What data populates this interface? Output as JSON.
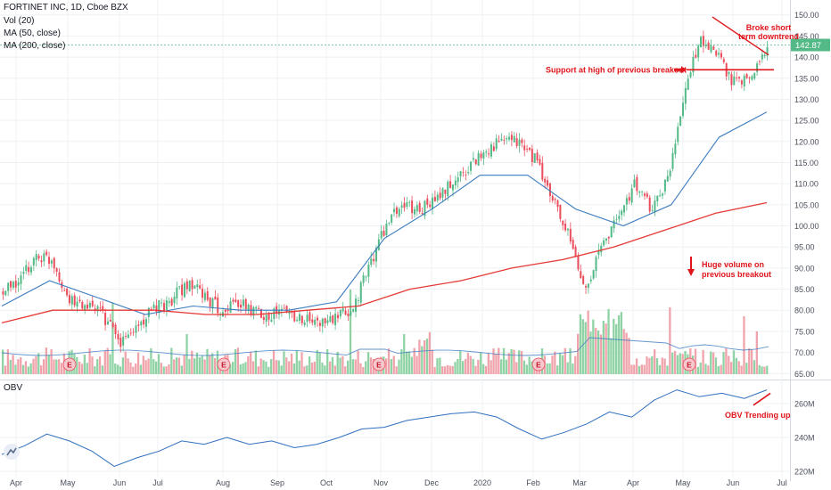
{
  "header": {
    "title": "FORTINET INC, 1D, Cboe BZX",
    "volume_label": "Vol (20)",
    "ma50_label": "MA (50, close)",
    "ma200_label": "MA (200, close)",
    "obv_label": "OBV"
  },
  "price_tag": "142.87",
  "colors": {
    "up": "#53b987",
    "down": "#eb4d5c",
    "ma50": "#3a7bbf",
    "ma200": "#e53935",
    "obv": "#2f6fbf",
    "annotation": "#e0141b",
    "grid": "#eef0f3",
    "axis_text": "#4a4f5c"
  },
  "chart_data": [
    {
      "type": "candlestick",
      "title": "FORTINET INC, 1D, Cboe BZX",
      "x_tick_labels": [
        "Apr",
        "May",
        "Jun",
        "Jul",
        "Aug",
        "Sep",
        "Oct",
        "Nov",
        "Dec",
        "2020",
        "Feb",
        "Mar",
        "Apr",
        "May",
        "Jun",
        "Jul"
      ],
      "y_tick_labels": [
        "65.00",
        "70.00",
        "75.00",
        "80.00",
        "85.00",
        "90.00",
        "95.00",
        "100.00",
        "105.00",
        "110.00",
        "115.00",
        "120.00",
        "125.00",
        "130.00",
        "135.00",
        "140.00",
        "145.00",
        "150.00"
      ],
      "ylim": [
        64,
        151
      ],
      "grid": true,
      "last_price": 142.87,
      "close_path": [
        {
          "x": "Apr",
          "y": 84
        },
        {
          "x": "mid-Apr",
          "y": 87
        },
        {
          "x": "late-Apr",
          "y": 93
        },
        {
          "x": "May",
          "y": 92
        },
        {
          "x": "early-May",
          "y": 82
        },
        {
          "x": "mid-May",
          "y": 81
        },
        {
          "x": "late-May",
          "y": 79
        },
        {
          "x": "Jun",
          "y": 72
        },
        {
          "x": "mid-Jun",
          "y": 76
        },
        {
          "x": "late-Jun",
          "y": 80
        },
        {
          "x": "Jul",
          "y": 82
        },
        {
          "x": "mid-Jul",
          "y": 86
        },
        {
          "x": "late-Jul",
          "y": 84
        },
        {
          "x": "Aug",
          "y": 80
        },
        {
          "x": "mid-Aug",
          "y": 82
        },
        {
          "x": "late-Aug",
          "y": 80
        },
        {
          "x": "Sep",
          "y": 79
        },
        {
          "x": "mid-Sep",
          "y": 80
        },
        {
          "x": "late-Sep",
          "y": 78
        },
        {
          "x": "Oct",
          "y": 77
        },
        {
          "x": "mid-Oct",
          "y": 78
        },
        {
          "x": "late-Oct",
          "y": 80
        },
        {
          "x": "Nov",
          "y": 90
        },
        {
          "x": "mid-Nov",
          "y": 100
        },
        {
          "x": "late-Nov",
          "y": 105
        },
        {
          "x": "Dec",
          "y": 104
        },
        {
          "x": "mid-Dec",
          "y": 106
        },
        {
          "x": "late-Dec",
          "y": 110
        },
        {
          "x": "2020",
          "y": 114
        },
        {
          "x": "mid-Jan",
          "y": 118
        },
        {
          "x": "late-Jan",
          "y": 120
        },
        {
          "x": "Feb",
          "y": 120
        },
        {
          "x": "mid-Feb",
          "y": 116
        },
        {
          "x": "late-Feb",
          "y": 107
        },
        {
          "x": "Mar",
          "y": 98
        },
        {
          "x": "mid-Mar",
          "y": 85
        },
        {
          "x": "late-Mar",
          "y": 95
        },
        {
          "x": "Apr",
          "y": 102
        },
        {
          "x": "mid-Apr",
          "y": 110
        },
        {
          "x": "late-Apr",
          "y": 104
        },
        {
          "x": "late-Apr2",
          "y": 111
        },
        {
          "x": "May",
          "y": 132
        },
        {
          "x": "mid-May",
          "y": 144
        },
        {
          "x": "late-May",
          "y": 140
        },
        {
          "x": "Jun",
          "y": 134
        },
        {
          "x": "mid-Jun",
          "y": 135
        },
        {
          "x": "late-Jun",
          "y": 142.87
        }
      ],
      "series": [
        {
          "name": "MA (50, close)",
          "values": [
            {
              "x": "Apr",
              "y": 81
            },
            {
              "x": "May",
              "y": 87
            },
            {
              "x": "Jun",
              "y": 83
            },
            {
              "x": "Jul",
              "y": 79
            },
            {
              "x": "Aug",
              "y": 81
            },
            {
              "x": "Sep",
              "y": 80
            },
            {
              "x": "Oct",
              "y": 80
            },
            {
              "x": "Nov",
              "y": 82
            },
            {
              "x": "Dec",
              "y": 97
            },
            {
              "x": "2020",
              "y": 104
            },
            {
              "x": "Feb",
              "y": 112
            },
            {
              "x": "Mar",
              "y": 112
            },
            {
              "x": "Apr",
              "y": 104
            },
            {
              "x": "late-Apr",
              "y": 100
            },
            {
              "x": "May",
              "y": 105
            },
            {
              "x": "Jun",
              "y": 121
            },
            {
              "x": "late-Jun",
              "y": 127
            }
          ]
        },
        {
          "name": "MA (200, close)",
          "values": [
            {
              "x": "Apr",
              "y": 77
            },
            {
              "x": "May",
              "y": 80
            },
            {
              "x": "Jun",
              "y": 80
            },
            {
              "x": "Jul",
              "y": 80
            },
            {
              "x": "Aug",
              "y": 79
            },
            {
              "x": "Sep",
              "y": 79
            },
            {
              "x": "Oct",
              "y": 80
            },
            {
              "x": "Nov",
              "y": 81
            },
            {
              "x": "Dec",
              "y": 85
            },
            {
              "x": "2020",
              "y": 87
            },
            {
              "x": "Feb",
              "y": 90
            },
            {
              "x": "Mar",
              "y": 92
            },
            {
              "x": "Apr",
              "y": 95
            },
            {
              "x": "May",
              "y": 99
            },
            {
              "x": "Jun",
              "y": 103
            },
            {
              "x": "late-Jun",
              "y": 105.5
            }
          ]
        }
      ],
      "annotations": [
        {
          "text": "Broke short term downtrend"
        },
        {
          "text": "Support at high of previous breakout"
        },
        {
          "text": "Huge volume on previous breakout"
        }
      ]
    },
    {
      "type": "line",
      "title": "OBV",
      "y_tick_labels": [
        "220M",
        "240M",
        "260M"
      ],
      "ylim": [
        218,
        272
      ],
      "series": [
        {
          "name": "OBV",
          "values": [
            {
              "x": "Apr",
              "y": 230
            },
            {
              "x": "mid-Apr",
              "y": 235
            },
            {
              "x": "late-Apr",
              "y": 242
            },
            {
              "x": "May",
              "y": 238
            },
            {
              "x": "mid-May",
              "y": 232
            },
            {
              "x": "Jun",
              "y": 223
            },
            {
              "x": "mid-Jun",
              "y": 228
            },
            {
              "x": "Jul",
              "y": 232
            },
            {
              "x": "mid-Jul",
              "y": 238
            },
            {
              "x": "Aug",
              "y": 236
            },
            {
              "x": "mid-Aug",
              "y": 240
            },
            {
              "x": "Sep",
              "y": 236
            },
            {
              "x": "mid-Sep",
              "y": 238
            },
            {
              "x": "Oct",
              "y": 234
            },
            {
              "x": "mid-Oct",
              "y": 236
            },
            {
              "x": "Nov",
              "y": 240
            },
            {
              "x": "mid-Nov",
              "y": 245
            },
            {
              "x": "Dec",
              "y": 246
            },
            {
              "x": "mid-Dec",
              "y": 250
            },
            {
              "x": "2020",
              "y": 252
            },
            {
              "x": "mid-Jan",
              "y": 254
            },
            {
              "x": "Feb",
              "y": 255
            },
            {
              "x": "mid-Feb",
              "y": 252
            },
            {
              "x": "Mar",
              "y": 245
            },
            {
              "x": "mid-Mar",
              "y": 239
            },
            {
              "x": "late-Mar",
              "y": 243
            },
            {
              "x": "Apr",
              "y": 248
            },
            {
              "x": "mid-Apr",
              "y": 255
            },
            {
              "x": "late-Apr",
              "y": 252
            },
            {
              "x": "May",
              "y": 262
            },
            {
              "x": "mid-May",
              "y": 268
            },
            {
              "x": "late-May",
              "y": 264
            },
            {
              "x": "Jun",
              "y": 266
            },
            {
              "x": "mid-Jun",
              "y": 263
            },
            {
              "x": "late-Jun",
              "y": 268
            }
          ]
        }
      ],
      "annotations": [
        {
          "text": "OBV Trending up"
        }
      ]
    }
  ],
  "earnings_markers": [
    "E",
    "E",
    "E",
    "E",
    "E"
  ]
}
